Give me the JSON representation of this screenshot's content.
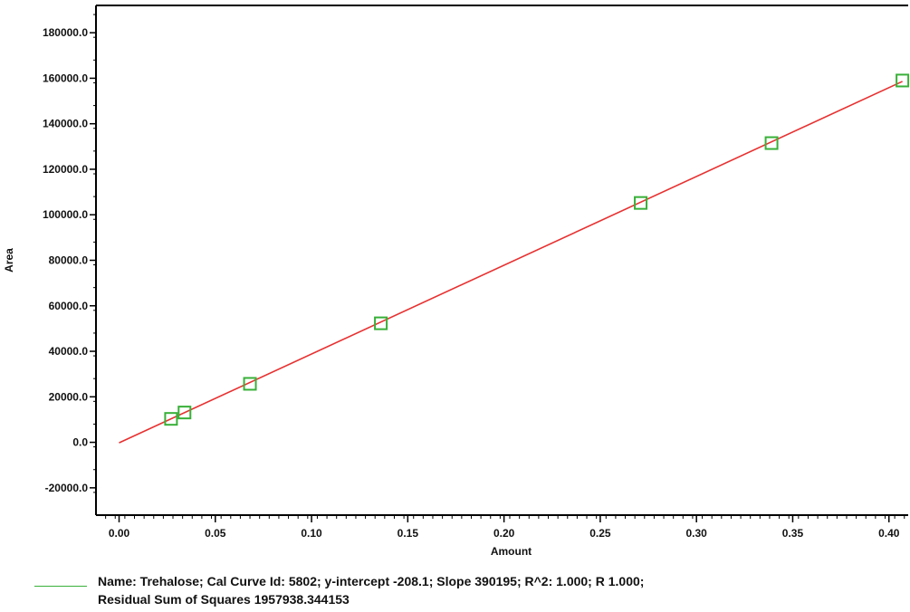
{
  "chart_data": {
    "type": "scatter",
    "title": "",
    "xlabel": "Amount",
    "ylabel": "Area",
    "xlim": [
      -0.012,
      0.41
    ],
    "ylim": [
      -32000,
      192000
    ],
    "x_ticks": [
      0.0,
      0.05,
      0.1,
      0.15,
      0.2,
      0.25,
      0.3,
      0.35,
      0.4
    ],
    "x_tick_labels": [
      "0.00",
      "0.05",
      "0.10",
      "0.15",
      "0.20",
      "0.25",
      "0.30",
      "0.35",
      "0.40"
    ],
    "y_ticks": [
      -20000,
      0,
      20000,
      40000,
      60000,
      80000,
      100000,
      120000,
      140000,
      160000,
      180000
    ],
    "y_tick_labels": [
      "-20000.0",
      "0.0",
      "20000.0",
      "40000.0",
      "60000.0",
      "80000.0",
      "100000.0",
      "120000.0",
      "140000.0",
      "160000.0",
      "180000.0"
    ],
    "grid": false,
    "points": [
      {
        "x": 0.027,
        "y": 10300
      },
      {
        "x": 0.034,
        "y": 13100
      },
      {
        "x": 0.068,
        "y": 25700
      },
      {
        "x": 0.136,
        "y": 52300
      },
      {
        "x": 0.271,
        "y": 105200
      },
      {
        "x": 0.339,
        "y": 131500
      },
      {
        "x": 0.407,
        "y": 159000
      }
    ],
    "fit_line": {
      "x_start": 0.0,
      "x_end": 0.407,
      "slope": 390195,
      "intercept": -208.1
    },
    "colors": {
      "points": "#38b038",
      "fit_line": "#e83030",
      "axis": "#000000"
    },
    "legend_lines": [
      "Name: Trehalose;   Cal Curve Id: 5802; y-intercept  -208.1; Slope 390195;   R^2: 1.000; R 1.000;",
      "Residual Sum of Squares 1957938.344153"
    ]
  }
}
